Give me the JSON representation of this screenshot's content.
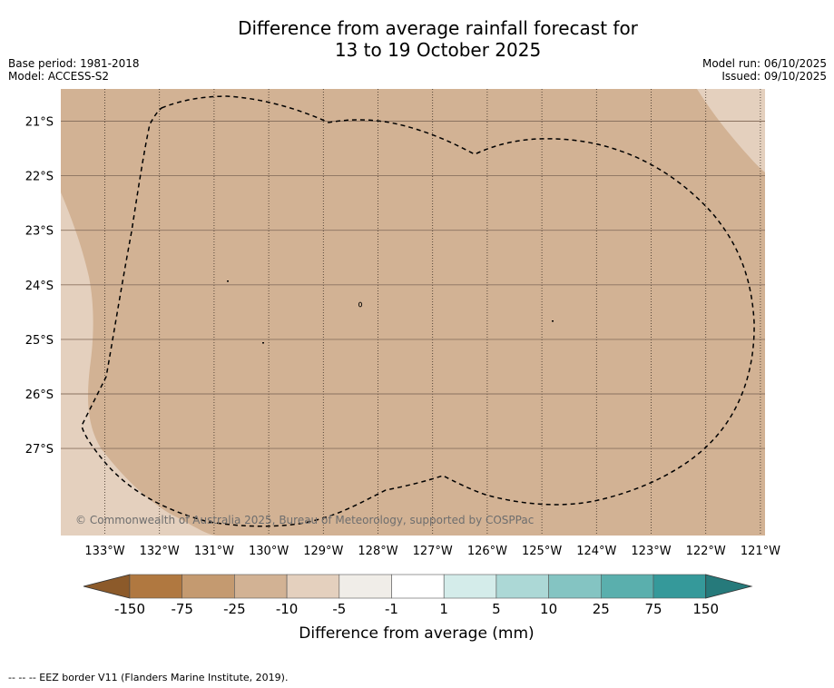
{
  "title": {
    "line1": "Difference from average rainfall forecast for",
    "line2": "13 to 19 October 2025"
  },
  "meta": {
    "base_period": "Base period: 1981-2018",
    "model": "Model: ACCESS-S2",
    "model_run": "Model run: 06/10/2025",
    "issued": "Issued: 09/10/2025"
  },
  "map": {
    "lon_labels": [
      "133°W",
      "132°W",
      "131°W",
      "130°W",
      "129°W",
      "128°W",
      "127°W",
      "126°W",
      "125°W",
      "124°W",
      "123°W",
      "122°W",
      "121°W"
    ],
    "lat_labels": [
      "21°S",
      "22°S",
      "23°S",
      "24°S",
      "25°S",
      "26°S",
      "27°S"
    ],
    "copyright": "© Commonwealth of Australia 2025, Bureau of Meteorology, supported by COSPPac",
    "colors": {
      "background_class": "#d2b294",
      "light_class": "#e4d0be"
    }
  },
  "legend": {
    "labels": [
      "-150",
      "-75",
      "-25",
      "-10",
      "-5",
      "-1",
      "1",
      "5",
      "10",
      "25",
      "75",
      "150"
    ],
    "colors": [
      "#8c5a2a",
      "#b07840",
      "#c49a70",
      "#d2b294",
      "#e4d0be",
      "#f0ede8",
      "#ffffff",
      "#d4ecea",
      "#acd8d6",
      "#84c4c2",
      "#5aafad",
      "#35999a",
      "#267a7b"
    ],
    "xlabel": "Difference from average (mm)"
  },
  "footnote": "-- -- -- EEZ border V11 (Flanders Marine Institute, 2019)."
}
